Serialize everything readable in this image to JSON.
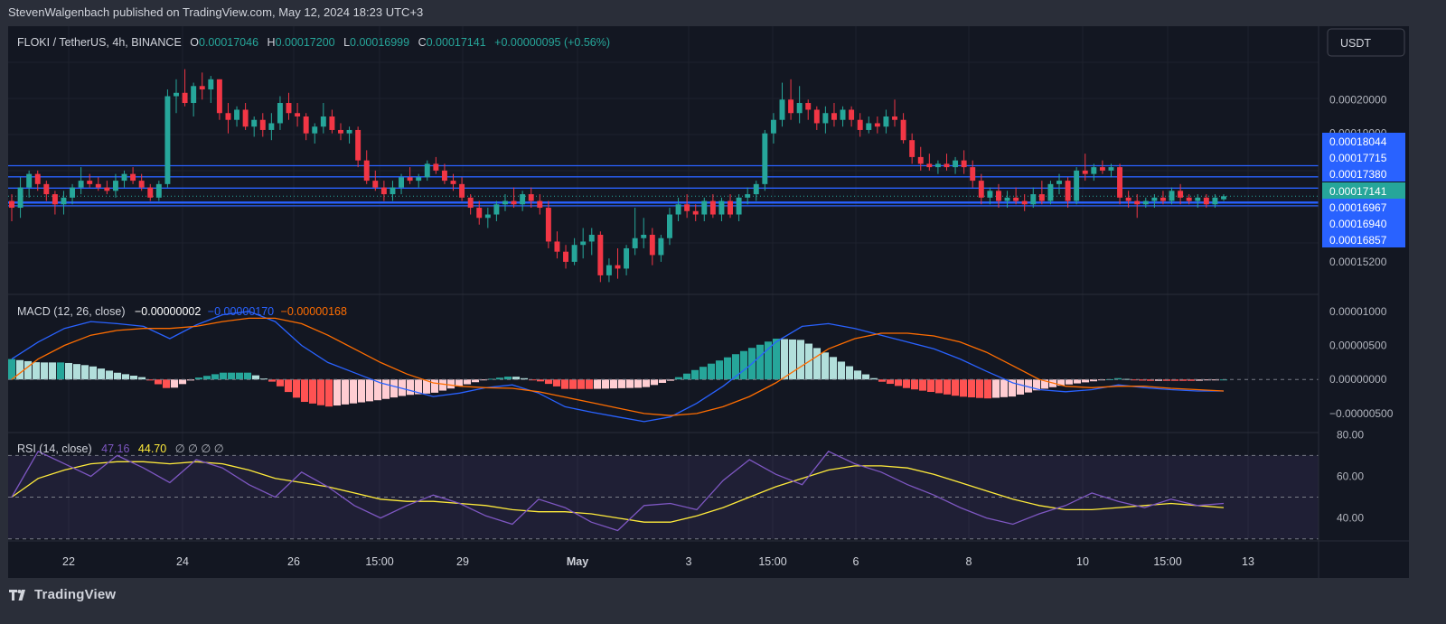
{
  "publisher_line": "StevenWalgenbach published on TradingView.com, May 12, 2024 18:23 UTC+3",
  "brand": "TradingView",
  "currency_button": "USDT",
  "colors": {
    "up": "#26a69a",
    "down": "#f23645",
    "bg": "#131722",
    "grid": "#1e222d",
    "hline": "#2962ff",
    "macd": "#2962ff",
    "signal": "#ff6d00",
    "rsi": "#7e57c2",
    "rsi_ma": "#ffeb3b",
    "hist_pos_strong": "#26a69a",
    "hist_pos_weak": "#b2dfdb",
    "hist_neg_strong": "#ff5252",
    "hist_neg_weak": "#ffcdd2"
  },
  "legend": {
    "symbol": "FLOKI / TetherUS, 4h, BINANCE",
    "o_label": "O",
    "o": "0.00017046",
    "h_label": "H",
    "h": "0.00017200",
    "l_label": "L",
    "l": "0.00016999",
    "c_label": "C",
    "c": "0.00017141",
    "change": "+0.00000095 (+0.56%)",
    "macd_title": "MACD (12, 26, close)",
    "macd_hist": "−0.00000002",
    "macd_line": "−0.00000170",
    "macd_signal": "−0.00000168",
    "rsi_title": "RSI (14, close)",
    "rsi_value": "47.16",
    "rsi_ma_value": "44.70",
    "rsi_extra": "∅ ∅ ∅ ∅"
  },
  "chart_data": {
    "type": "candlestick",
    "price_axis": {
      "ticks": [
        0.0002,
        0.00019,
        0.000152
      ],
      "tick_labels": [
        "0.00020000",
        "0.00019000",
        "0.00015200"
      ],
      "range": [
        0.0001445,
        0.0002145
      ]
    },
    "x_axis_labels": [
      "22",
      "24",
      "26",
      "15:00",
      "29",
      "May",
      "3",
      "15:00",
      "6",
      "8",
      "10",
      "15:00",
      "13"
    ],
    "horizontal_lines": [
      0.00018044,
      0.00017715,
      0.0001738,
      0.00016967,
      0.0001694,
      0.00016857
    ],
    "horizontal_line_labels": [
      "0.00018044",
      "0.00017715",
      "0.00017380",
      "0.00016967",
      "0.00016940",
      "0.00016857"
    ],
    "last_price": 0.00017141,
    "last_price_label": "0.00017141",
    "candles": [
      [
        0.00017,
        0.000172,
        0.000164,
        0.000168
      ],
      [
        0.000168,
        0.000177,
        0.000165,
        0.000174
      ],
      [
        0.000174,
        0.000179,
        0.000171,
        0.000178
      ],
      [
        0.000178,
        0.000179,
        0.000173,
        0.000175
      ],
      [
        0.000175,
        0.000176,
        0.00017,
        0.000172
      ],
      [
        0.000172,
        0.000173,
        0.000166,
        0.000169
      ],
      [
        0.000169,
        0.000173,
        0.000166,
        0.000171
      ],
      [
        0.000171,
        0.000175,
        0.000169,
        0.000174
      ],
      [
        0.000174,
        0.00018,
        0.000172,
        0.000176
      ],
      [
        0.000176,
        0.000178,
        0.000174,
        0.000175
      ],
      [
        0.000175,
        0.000177,
        0.000173,
        0.000174
      ],
      [
        0.000174,
        0.000176,
        0.000172,
        0.000173
      ],
      [
        0.000173,
        0.000178,
        0.000171,
        0.000176
      ],
      [
        0.000176,
        0.000179,
        0.000174,
        0.000178
      ],
      [
        0.000178,
        0.00018,
        0.000175,
        0.000176
      ],
      [
        0.000176,
        0.000178,
        0.000173,
        0.000174
      ],
      [
        0.000174,
        0.000175,
        0.00017,
        0.000171
      ],
      [
        0.000171,
        0.000176,
        0.00017,
        0.000175
      ],
      [
        0.000175,
        0.000203,
        0.000174,
        0.000201
      ],
      [
        0.000201,
        0.000206,
        0.000196,
        0.000202
      ],
      [
        0.000202,
        0.000209,
        0.000198,
        0.000199
      ],
      [
        0.000199,
        0.000205,
        0.000195,
        0.000204
      ],
      [
        0.000204,
        0.000208,
        0.0002,
        0.000203
      ],
      [
        0.000203,
        0.000207,
        0.000199,
        0.000206
      ],
      [
        0.000206,
        0.000206,
        0.000194,
        0.000196
      ],
      [
        0.000196,
        0.000199,
        0.00019,
        0.000194
      ],
      [
        0.000194,
        0.000198,
        0.000192,
        0.000197
      ],
      [
        0.000197,
        0.000199,
        0.000191,
        0.000192
      ],
      [
        0.000192,
        0.000195,
        0.000189,
        0.000194
      ],
      [
        0.000194,
        0.000196,
        0.000189,
        0.000191
      ],
      [
        0.000191,
        0.000196,
        0.000188,
        0.000193
      ],
      [
        0.000193,
        0.000201,
        0.000191,
        0.000199
      ],
      [
        0.000199,
        0.000202,
        0.000194,
        0.000196
      ],
      [
        0.000196,
        0.000199,
        0.000192,
        0.000195
      ],
      [
        0.000195,
        0.000196,
        0.000188,
        0.00019
      ],
      [
        0.00019,
        0.000193,
        0.000187,
        0.000192
      ],
      [
        0.000192,
        0.000199,
        0.00019,
        0.000195
      ],
      [
        0.000195,
        0.000197,
        0.00019,
        0.000191
      ],
      [
        0.000191,
        0.000193,
        0.000188,
        0.00019
      ],
      [
        0.00019,
        0.000192,
        0.000187,
        0.000191
      ],
      [
        0.000191,
        0.000192,
        0.00018,
        0.000182
      ],
      [
        0.000182,
        0.000185,
        0.000175,
        0.000176
      ],
      [
        0.000176,
        0.000179,
        0.000173,
        0.000174
      ],
      [
        0.000174,
        0.000176,
        0.00017,
        0.000172
      ],
      [
        0.000172,
        0.000176,
        0.00017,
        0.000174
      ],
      [
        0.000174,
        0.000178,
        0.000172,
        0.000177
      ],
      [
        0.000177,
        0.00018,
        0.000175,
        0.000176
      ],
      [
        0.000176,
        0.000178,
        0.000174,
        0.000177
      ],
      [
        0.000177,
        0.000182,
        0.000176,
        0.000181
      ],
      [
        0.000181,
        0.000183,
        0.000178,
        0.000179
      ],
      [
        0.000179,
        0.000181,
        0.000175,
        0.000176
      ],
      [
        0.000176,
        0.000178,
        0.000173,
        0.000175
      ],
      [
        0.000175,
        0.000177,
        0.00017,
        0.000171
      ],
      [
        0.000171,
        0.000172,
        0.000166,
        0.000168
      ],
      [
        0.000168,
        0.00017,
        0.000163,
        0.000165
      ],
      [
        0.000165,
        0.000168,
        0.000162,
        0.000166
      ],
      [
        0.000166,
        0.00017,
        0.000164,
        0.000169
      ],
      [
        0.000169,
        0.000172,
        0.000167,
        0.00017
      ],
      [
        0.00017,
        0.000174,
        0.000168,
        0.000169
      ],
      [
        0.000169,
        0.000173,
        0.000167,
        0.000172
      ],
      [
        0.000172,
        0.000174,
        0.000168,
        0.00017
      ],
      [
        0.00017,
        0.000172,
        0.000166,
        0.000168
      ],
      [
        0.000168,
        0.00017,
        0.000156,
        0.000158
      ],
      [
        0.000158,
        0.000161,
        0.000153,
        0.000155
      ],
      [
        0.000155,
        0.000157,
        0.00015,
        0.000152
      ],
      [
        0.000152,
        0.000159,
        0.000151,
        0.000157
      ],
      [
        0.000157,
        0.000162,
        0.000153,
        0.000158
      ],
      [
        0.000158,
        0.000162,
        0.000154,
        0.00016
      ],
      [
        0.00016,
        0.000161,
        0.000146,
        0.000148
      ],
      [
        0.000148,
        0.000153,
        0.000146,
        0.000151
      ],
      [
        0.000151,
        0.000156,
        0.000147,
        0.00015
      ],
      [
        0.00015,
        0.000157,
        0.000148,
        0.000156
      ],
      [
        0.000156,
        0.000168,
        0.000154,
        0.000159
      ],
      [
        0.000159,
        0.000165,
        0.000156,
        0.00016
      ],
      [
        0.00016,
        0.000162,
        0.000151,
        0.000154
      ],
      [
        0.000154,
        0.00016,
        0.000152,
        0.000159
      ],
      [
        0.000159,
        0.000168,
        0.000157,
        0.000166
      ],
      [
        0.000166,
        0.000171,
        0.000164,
        0.000169
      ],
      [
        0.000169,
        0.000172,
        0.000165,
        0.000167
      ],
      [
        0.000167,
        0.000169,
        0.000164,
        0.000166
      ],
      [
        0.000166,
        0.000171,
        0.000164,
        0.00017
      ],
      [
        0.00017,
        0.000172,
        0.000165,
        0.000166
      ],
      [
        0.000166,
        0.000171,
        0.000164,
        0.00017
      ],
      [
        0.00017,
        0.000172,
        0.000165,
        0.000166
      ],
      [
        0.000166,
        0.000172,
        0.000164,
        0.000171
      ],
      [
        0.000171,
        0.000174,
        0.000169,
        0.000172
      ],
      [
        0.000172,
        0.000176,
        0.00017,
        0.000175
      ],
      [
        0.000175,
        0.000191,
        0.000173,
        0.00019
      ],
      [
        0.00019,
        0.000196,
        0.000187,
        0.000194
      ],
      [
        0.000194,
        0.000205,
        0.000192,
        0.0002
      ],
      [
        0.0002,
        0.000206,
        0.000194,
        0.000196
      ],
      [
        0.000196,
        0.000204,
        0.000193,
        0.000199
      ],
      [
        0.000199,
        0.0002,
        0.000194,
        0.000197
      ],
      [
        0.000197,
        0.000198,
        0.000191,
        0.000193
      ],
      [
        0.000193,
        0.000198,
        0.00019,
        0.000196
      ],
      [
        0.000196,
        0.000199,
        0.000192,
        0.000194
      ],
      [
        0.000194,
        0.000198,
        0.000192,
        0.000197
      ],
      [
        0.000197,
        0.000198,
        0.000192,
        0.000194
      ],
      [
        0.000194,
        0.000196,
        0.000189,
        0.000191
      ],
      [
        0.000191,
        0.000195,
        0.00019,
        0.000193
      ],
      [
        0.000193,
        0.000195,
        0.00019,
        0.000192
      ],
      [
        0.000192,
        0.000197,
        0.00019,
        0.000195
      ],
      [
        0.000195,
        0.0002,
        0.000192,
        0.000194
      ],
      [
        0.000194,
        0.000196,
        0.000187,
        0.000188
      ],
      [
        0.000188,
        0.00019,
        0.000181,
        0.000183
      ],
      [
        0.000183,
        0.000186,
        0.000179,
        0.000181
      ],
      [
        0.000181,
        0.000184,
        0.000179,
        0.00018
      ],
      [
        0.00018,
        0.000182,
        0.000178,
        0.000181
      ],
      [
        0.000181,
        0.000184,
        0.000179,
        0.00018
      ],
      [
        0.00018,
        0.000183,
        0.000178,
        0.000182
      ],
      [
        0.000182,
        0.000185,
        0.000178,
        0.00018
      ],
      [
        0.00018,
        0.000182,
        0.000174,
        0.000176
      ],
      [
        0.000176,
        0.000178,
        0.000169,
        0.000171
      ],
      [
        0.000171,
        0.000174,
        0.000169,
        0.000173
      ],
      [
        0.000173,
        0.000175,
        0.000168,
        0.00017
      ],
      [
        0.00017,
        0.000173,
        0.000168,
        0.000171
      ],
      [
        0.000171,
        0.000174,
        0.000169,
        0.00017
      ],
      [
        0.00017,
        0.000172,
        0.000167,
        0.000169
      ],
      [
        0.000169,
        0.000174,
        0.000168,
        0.000172
      ],
      [
        0.000172,
        0.000176,
        0.000169,
        0.00017
      ],
      [
        0.00017,
        0.000176,
        0.000169,
        0.000175
      ],
      [
        0.000175,
        0.000178,
        0.000172,
        0.000176
      ],
      [
        0.000176,
        0.000177,
        0.000168,
        0.00017
      ],
      [
        0.00017,
        0.00018,
        0.000169,
        0.000179
      ],
      [
        0.000179,
        0.000184,
        0.000176,
        0.000178
      ],
      [
        0.000178,
        0.000181,
        0.000176,
        0.00018
      ],
      [
        0.00018,
        0.000182,
        0.000178,
        0.000179
      ],
      [
        0.000179,
        0.000181,
        0.000177,
        0.00018
      ],
      [
        0.00018,
        0.000181,
        0.000169,
        0.000171
      ],
      [
        0.000171,
        0.000173,
        0.000168,
        0.00017
      ],
      [
        0.00017,
        0.000172,
        0.000165,
        0.000169
      ],
      [
        0.000169,
        0.000171,
        0.000168,
        0.00017
      ],
      [
        0.00017,
        0.000172,
        0.000168,
        0.000171
      ],
      [
        0.000171,
        0.000173,
        0.000169,
        0.00017
      ],
      [
        0.00017,
        0.000174,
        0.000169,
        0.000173
      ],
      [
        0.000173,
        0.000175,
        0.000169,
        0.000171
      ],
      [
        0.000171,
        0.000172,
        0.000169,
        0.00017
      ],
      [
        0.00017,
        0.000172,
        0.000168,
        0.000171
      ],
      [
        0.000171,
        0.000172,
        0.000168,
        0.000169
      ],
      [
        0.000169,
        0.000172,
        0.000168,
        0.000171
      ],
      [
        0.0001705,
        0.000172,
        0.00017,
        0.0001714
      ]
    ],
    "macd_panel": {
      "ticks": [
        1e-05,
        5e-06,
        0.0,
        -5e-06
      ],
      "tick_labels": [
        "0.00001000",
        "0.00000500",
        "0.00000000",
        "−0.00000500"
      ],
      "range": [
        -7.8e-06,
        1.25e-05
      ],
      "macd_line": [
        3e-06,
        5.5e-06,
        7.5e-06,
        8.5e-06,
        8.2e-06,
        7.8e-06,
        6e-06,
        8e-06,
        9.5e-06,
        1e-05,
        8.5e-06,
        5e-06,
        2.5e-06,
        1e-06,
        -5e-07,
        -1.5e-06,
        -2.5e-06,
        -2e-06,
        -1.2e-06,
        -8e-07,
        -2e-06,
        -4e-06,
        -4.8e-06,
        -5.5e-06,
        -6.2e-06,
        -5.5e-06,
        -3.5e-06,
        -1e-06,
        2e-06,
        5.5e-06,
        7.8e-06,
        8.2e-06,
        7.5e-06,
        6.5e-06,
        5.5e-06,
        4.5e-06,
        3e-06,
        1.2e-06,
        -5e-07,
        -1.5e-06,
        -1.8e-06,
        -1.5e-06,
        -8e-07,
        -1.2e-06,
        -1.5e-06,
        -1.7e-06,
        -1.7e-06
      ],
      "signal_line": [
        0.0,
        3e-06,
        5e-06,
        6.5e-06,
        7.2e-06,
        7.5e-06,
        7.5e-06,
        7.8e-06,
        8.5e-06,
        9e-06,
        9e-06,
        8.2e-06,
        6.5e-06,
        4.5e-06,
        2.5e-06,
        8e-07,
        -5e-07,
        -1e-06,
        -1.2e-06,
        -1.3e-06,
        -1.8e-06,
        -2.6e-06,
        -3.4e-06,
        -4.2e-06,
        -5e-06,
        -5.3e-06,
        -5e-06,
        -4e-06,
        -2.5e-06,
        -5e-07,
        2e-06,
        4.5e-06,
        6e-06,
        6.8e-06,
        6.8e-06,
        6.4e-06,
        5.5e-06,
        4e-06,
        2e-06,
        0.0,
        -1e-06,
        -1.2e-06,
        -1e-06,
        -1e-06,
        -1.3e-06,
        -1.5e-06,
        -1.7e-06
      ]
    },
    "rsi_panel": {
      "ticks": [
        80,
        60,
        40
      ],
      "tick_labels": [
        "80.00",
        "60.00",
        "40.00"
      ],
      "band": [
        30,
        70
      ],
      "mid": 50,
      "range": [
        29,
        81
      ],
      "rsi": [
        50,
        72,
        66,
        60,
        70,
        64,
        57,
        68,
        64,
        56,
        50,
        62,
        55,
        46,
        40,
        46,
        51,
        47,
        41,
        37,
        49,
        45,
        38,
        34,
        46,
        47,
        44,
        58,
        68,
        61,
        56,
        72,
        66,
        62,
        56,
        51,
        45,
        40,
        37,
        42,
        46,
        52,
        48,
        45,
        49,
        46,
        47
      ],
      "rsi_ma": [
        50,
        59,
        63,
        66,
        67,
        67,
        66,
        67,
        66,
        63,
        59,
        57,
        55,
        52,
        49,
        48,
        48,
        47,
        46,
        44,
        43,
        43,
        42,
        40,
        38,
        38,
        41,
        45,
        50,
        55,
        59,
        63,
        65,
        65,
        64,
        61,
        57,
        53,
        49,
        46,
        44,
        44,
        45,
        46,
        47,
        46,
        45
      ]
    }
  }
}
